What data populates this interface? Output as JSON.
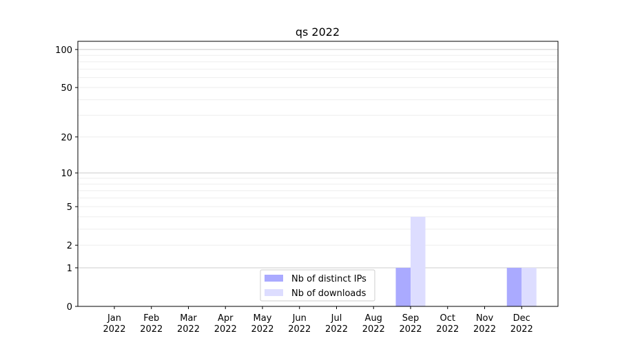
{
  "chart_data": {
    "type": "bar",
    "title": "qs 2022",
    "xlabel": "",
    "ylabel": "",
    "yscale": "log(1+y)",
    "ylim": [
      0,
      116
    ],
    "yticks": [
      0,
      1,
      2,
      5,
      10,
      20,
      50,
      100
    ],
    "ytick_labels": [
      "0",
      "1",
      "2",
      "5",
      "10",
      "20",
      "50",
      "100"
    ],
    "grid": true,
    "legend_position": "lower-center",
    "categories": [
      [
        "Jan",
        "2022"
      ],
      [
        "Feb",
        "2022"
      ],
      [
        "Mar",
        "2022"
      ],
      [
        "Apr",
        "2022"
      ],
      [
        "May",
        "2022"
      ],
      [
        "Jun",
        "2022"
      ],
      [
        "Jul",
        "2022"
      ],
      [
        "Aug",
        "2022"
      ],
      [
        "Sep",
        "2022"
      ],
      [
        "Oct",
        "2022"
      ],
      [
        "Nov",
        "2022"
      ],
      [
        "Dec",
        "2022"
      ]
    ],
    "series": [
      {
        "name": "Nb of distinct IPs",
        "color": "#aaaaff",
        "values": [
          0,
          0,
          0,
          0,
          0,
          0,
          0,
          0,
          1,
          0,
          0,
          1
        ]
      },
      {
        "name": "Nb of downloads",
        "color": "#ddddff",
        "values": [
          0,
          0,
          0,
          0,
          0,
          0,
          0,
          0,
          4,
          0,
          0,
          1
        ]
      }
    ]
  }
}
